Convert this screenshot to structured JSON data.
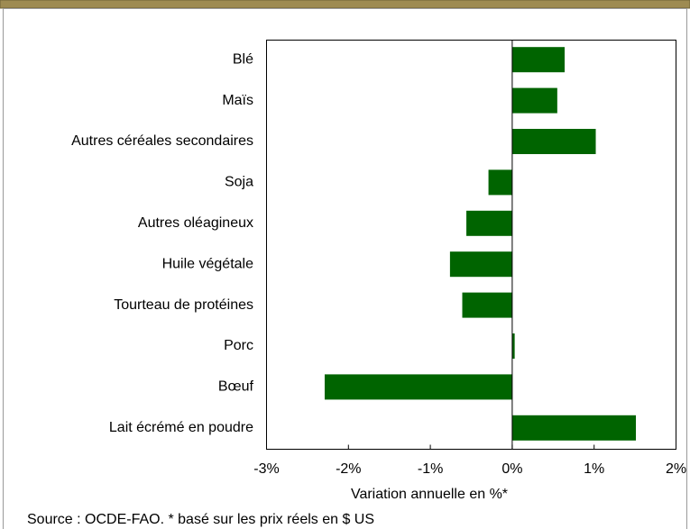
{
  "chart_data": {
    "type": "bar",
    "orientation": "horizontal",
    "categories": [
      "Blé",
      "Maïs",
      "Autres céréales secondaires",
      "Soja",
      "Autres oléagineux",
      "Huile végétale",
      "Tourteau de protéines",
      "Porc",
      "Bœuf",
      "Lait écrémé en poudre"
    ],
    "values": [
      0.64,
      0.55,
      1.02,
      -0.29,
      -0.56,
      -0.76,
      -0.61,
      0.03,
      -2.29,
      1.51
    ],
    "color": "#006400",
    "xlim": [
      -3,
      2
    ],
    "xticks": [
      {
        "value": -3,
        "label": "-3%"
      },
      {
        "value": -2,
        "label": "-2%"
      },
      {
        "value": -1,
        "label": "-1%"
      },
      {
        "value": 0,
        "label": "0%"
      },
      {
        "value": 1,
        "label": "1%"
      },
      {
        "value": 2,
        "label": "2%"
      }
    ],
    "x_label": "Variation annuelle en %*",
    "note": "Source : OCDE-FAO.  * basé sur les prix réels en $ US",
    "grid": false
  }
}
